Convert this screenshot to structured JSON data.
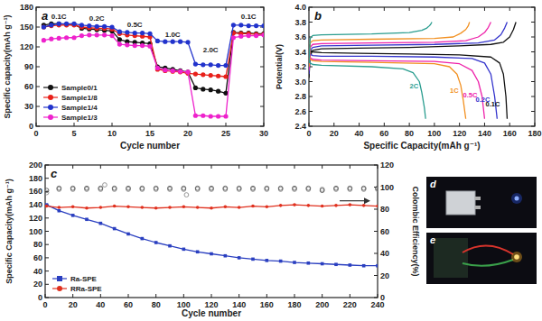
{
  "chart_data": [
    {
      "type": "line",
      "title": "a",
      "x_label": "Cycle number",
      "y_label": "Specific capacity(mAh g⁻¹)",
      "x": [
        1,
        2,
        3,
        4,
        5,
        6,
        7,
        8,
        9,
        10,
        11,
        12,
        13,
        14,
        15,
        16,
        17,
        18,
        19,
        20,
        21,
        22,
        23,
        24,
        25,
        26,
        27,
        28,
        29,
        30
      ],
      "xlim": [
        0,
        30
      ],
      "xticks": [
        0,
        5,
        10,
        15,
        20,
        25,
        30
      ],
      "ylim": [
        0,
        180
      ],
      "yticks": [
        0,
        30,
        60,
        90,
        120,
        150,
        180
      ],
      "grid": false,
      "legend": "lower left",
      "series": [
        {
          "name": "Sample0/1",
          "color": "#111111",
          "marker": "circle",
          "line_style": "solid",
          "values": [
            153,
            155,
            155,
            154,
            154,
            148,
            147,
            146,
            145,
            144,
            131,
            128,
            127,
            126,
            125,
            90,
            88,
            86,
            84,
            82,
            58,
            56,
            55,
            53,
            50,
            142,
            141,
            141,
            140,
            140
          ]
        },
        {
          "name": "Sample1/8",
          "color": "#e8201a",
          "marker": "circle",
          "line_style": "solid",
          "values": [
            150,
            152,
            153,
            153,
            153,
            150,
            149,
            148,
            148,
            147,
            140,
            138,
            137,
            136,
            135,
            86,
            84,
            83,
            82,
            80,
            79,
            78,
            77,
            76,
            75,
            141,
            140,
            140,
            139,
            139
          ]
        },
        {
          "name": "Sample1/4",
          "color": "#2233cc",
          "marker": "circle",
          "line_style": "solid",
          "values": [
            150,
            153,
            155,
            155,
            155,
            153,
            152,
            151,
            151,
            150,
            143,
            142,
            141,
            141,
            140,
            129,
            128,
            128,
            128,
            127,
            94,
            93,
            93,
            92,
            92,
            153,
            153,
            152,
            152,
            152
          ]
        },
        {
          "name": "Sample1/3",
          "color": "#ee22cc",
          "marker": "circle",
          "line_style": "solid",
          "values": [
            130,
            132,
            133,
            134,
            134,
            137,
            138,
            138,
            138,
            137,
            124,
            123,
            122,
            122,
            121,
            88,
            85,
            84,
            83,
            82,
            16,
            16,
            15,
            15,
            15,
            134,
            136,
            137,
            137,
            138
          ]
        }
      ],
      "annotations": [
        {
          "text": "0.1C",
          "x": 3,
          "y": 162
        },
        {
          "text": "0.2C",
          "x": 8,
          "y": 160
        },
        {
          "text": "0.5C",
          "x": 13,
          "y": 150
        },
        {
          "text": "1.0C",
          "x": 18,
          "y": 135
        },
        {
          "text": "2.0C",
          "x": 23,
          "y": 112
        },
        {
          "text": "0.1C",
          "x": 28,
          "y": 162
        }
      ]
    },
    {
      "type": "line",
      "title": "b",
      "x_label": "Specific Capacity(mAh g⁻¹)",
      "y_label": "Potential(V)",
      "xlim": [
        0,
        180
      ],
      "xticks": [
        0,
        20,
        40,
        60,
        80,
        100,
        120,
        140,
        160,
        180
      ],
      "ylim": [
        2.4,
        4.0
      ],
      "yticks": [
        2.4,
        2.6,
        2.8,
        {
          "value": 3,
          "label": "3.0"
        },
        3.2,
        3.4,
        3.6,
        3.8,
        {
          "value": 4,
          "label": "4.0"
        }
      ],
      "grid": false,
      "series": [
        {
          "name": "0.1C",
          "color": "#111111",
          "line_style": "solid",
          "x": [
            0,
            1,
            3,
            10,
            40,
            80,
            120,
            145,
            155,
            160,
            163,
            165,
            null,
            0,
            1,
            3,
            10,
            40,
            80,
            120,
            145,
            152,
            155,
            157,
            158
          ],
          "values": [
            3.05,
            3.35,
            3.42,
            3.44,
            3.45,
            3.46,
            3.48,
            3.5,
            3.53,
            3.6,
            3.7,
            3.8,
            null,
            3.5,
            3.42,
            3.4,
            3.39,
            3.38,
            3.37,
            3.36,
            3.33,
            3.25,
            3.1,
            2.8,
            2.5
          ]
        },
        {
          "name": "0.2C",
          "color": "#3333cc",
          "line_style": "solid",
          "x": [
            0,
            1,
            3,
            10,
            50,
            100,
            135,
            148,
            153,
            156,
            158,
            null,
            0,
            1,
            3,
            10,
            50,
            100,
            130,
            140,
            145,
            148,
            150
          ],
          "values": [
            3.1,
            3.42,
            3.46,
            3.48,
            3.49,
            3.5,
            3.52,
            3.56,
            3.63,
            3.72,
            3.8,
            null,
            3.45,
            3.37,
            3.35,
            3.34,
            3.34,
            3.33,
            3.31,
            3.25,
            3.1,
            2.8,
            2.5
          ]
        },
        {
          "name": "0.5C",
          "color": "#ee22aa",
          "line_style": "solid",
          "x": [
            0,
            1,
            3,
            10,
            50,
            100,
            125,
            135,
            140,
            143,
            145,
            null,
            0,
            1,
            3,
            10,
            50,
            100,
            120,
            130,
            135,
            138,
            140
          ],
          "values": [
            3.15,
            3.46,
            3.5,
            3.51,
            3.52,
            3.53,
            3.55,
            3.6,
            3.66,
            3.73,
            3.8,
            null,
            3.4,
            3.32,
            3.3,
            3.29,
            3.28,
            3.27,
            3.24,
            3.15,
            3.0,
            2.8,
            2.5
          ]
        },
        {
          "name": "1C",
          "color": "#f29020",
          "line_style": "solid",
          "x": [
            0,
            1,
            3,
            10,
            50,
            100,
            115,
            121,
            125,
            127,
            128,
            null,
            0,
            1,
            3,
            10,
            50,
            100,
            112,
            118,
            121,
            123,
            125
          ],
          "values": [
            3.2,
            3.52,
            3.55,
            3.56,
            3.57,
            3.58,
            3.6,
            3.65,
            3.7,
            3.75,
            3.8,
            null,
            3.35,
            3.3,
            3.28,
            3.27,
            3.26,
            3.24,
            3.2,
            3.1,
            2.95,
            2.75,
            2.5
          ]
        },
        {
          "name": "2C",
          "color": "#2a9d8f",
          "line_style": "solid",
          "x": [
            0,
            1,
            3,
            10,
            50,
            80,
            90,
            94,
            96,
            97,
            98,
            null,
            0,
            1,
            3,
            10,
            50,
            75,
            83,
            88,
            90,
            92,
            93
          ],
          "values": [
            3.25,
            3.58,
            3.62,
            3.63,
            3.64,
            3.66,
            3.69,
            3.72,
            3.75,
            3.77,
            3.8,
            null,
            3.3,
            3.25,
            3.23,
            3.22,
            3.2,
            3.17,
            3.12,
            3.0,
            2.85,
            2.65,
            2.5
          ]
        }
      ]
    },
    {
      "type": "line",
      "title": "c",
      "x_label": "Cycle number",
      "y_label": "Specific Capacity(mAh g⁻¹)",
      "y2_label": "Colombic Efficiency(%)",
      "xlim": [
        0,
        240
      ],
      "xticks": [
        0,
        20,
        40,
        60,
        80,
        100,
        120,
        140,
        160,
        180,
        200,
        220,
        240
      ],
      "ylim": [
        0,
        200
      ],
      "yticks": [
        0,
        20,
        40,
        60,
        80,
        100,
        120,
        140,
        160,
        180,
        200
      ],
      "y2lim": [
        0,
        120
      ],
      "y2ticks": [
        0,
        20,
        40,
        60,
        80,
        100,
        120
      ],
      "grid": false,
      "legend": "lower left",
      "series": [
        {
          "name": "Ra-SPE",
          "color": "#2a3fc0",
          "marker": "square",
          "line_style": "solid",
          "x": [
            1,
            10,
            20,
            30,
            40,
            50,
            60,
            70,
            80,
            90,
            100,
            110,
            120,
            130,
            140,
            150,
            160,
            170,
            180,
            190,
            200,
            210,
            220,
            230,
            240
          ],
          "values": [
            140,
            131,
            124,
            118,
            112,
            104,
            96,
            89,
            83,
            78,
            73,
            69,
            66,
            63,
            60,
            58,
            56,
            55,
            53,
            52,
            51,
            50,
            49,
            48,
            48
          ]
        },
        {
          "name": "RRa-SPE",
          "color": "#e0301e",
          "marker": "circle",
          "line_style": "solid",
          "x": [
            1,
            10,
            20,
            30,
            40,
            50,
            60,
            70,
            80,
            90,
            100,
            110,
            120,
            130,
            140,
            150,
            160,
            170,
            180,
            190,
            200,
            210,
            220,
            230,
            240
          ],
          "values": [
            138,
            136,
            137,
            135,
            136,
            138,
            137,
            136,
            135,
            136,
            137,
            136,
            135,
            137,
            136,
            138,
            137,
            139,
            140,
            139,
            138,
            139,
            140,
            139,
            138
          ]
        },
        {
          "color": "#8c8c8c",
          "marker": "circle_open",
          "line_style": "none",
          "axis": "y2",
          "x": [
            1,
            10,
            20,
            30,
            40,
            43,
            50,
            60,
            70,
            80,
            90,
            100,
            102,
            110,
            120,
            130,
            140,
            150,
            160,
            170,
            180,
            190,
            200,
            210,
            220,
            230,
            240
          ],
          "values": [
            95,
            98,
            98,
            98,
            98,
            102,
            98,
            98,
            98,
            98,
            98,
            98,
            93,
            98,
            98,
            98,
            98,
            98,
            98,
            98,
            98,
            98,
            98,
            98,
            98,
            98,
            98
          ]
        },
        {
          "color": "#555555",
          "marker": "circle_open",
          "line_style": "none",
          "axis": "y2",
          "x": [
            1,
            10,
            20,
            30,
            40,
            50,
            60,
            70,
            80,
            90,
            100,
            110,
            120,
            130,
            140,
            150,
            160,
            170,
            180,
            190,
            200,
            210,
            220,
            230,
            240
          ],
          "values": [
            97,
            99,
            99,
            99,
            99,
            99,
            99,
            99,
            99,
            99,
            99,
            99,
            99,
            99,
            99,
            99,
            99,
            99,
            99,
            99,
            97,
            99,
            99,
            99,
            99
          ]
        }
      ]
    }
  ],
  "photos": [
    {
      "panel": "d"
    },
    {
      "panel": "e"
    }
  ]
}
